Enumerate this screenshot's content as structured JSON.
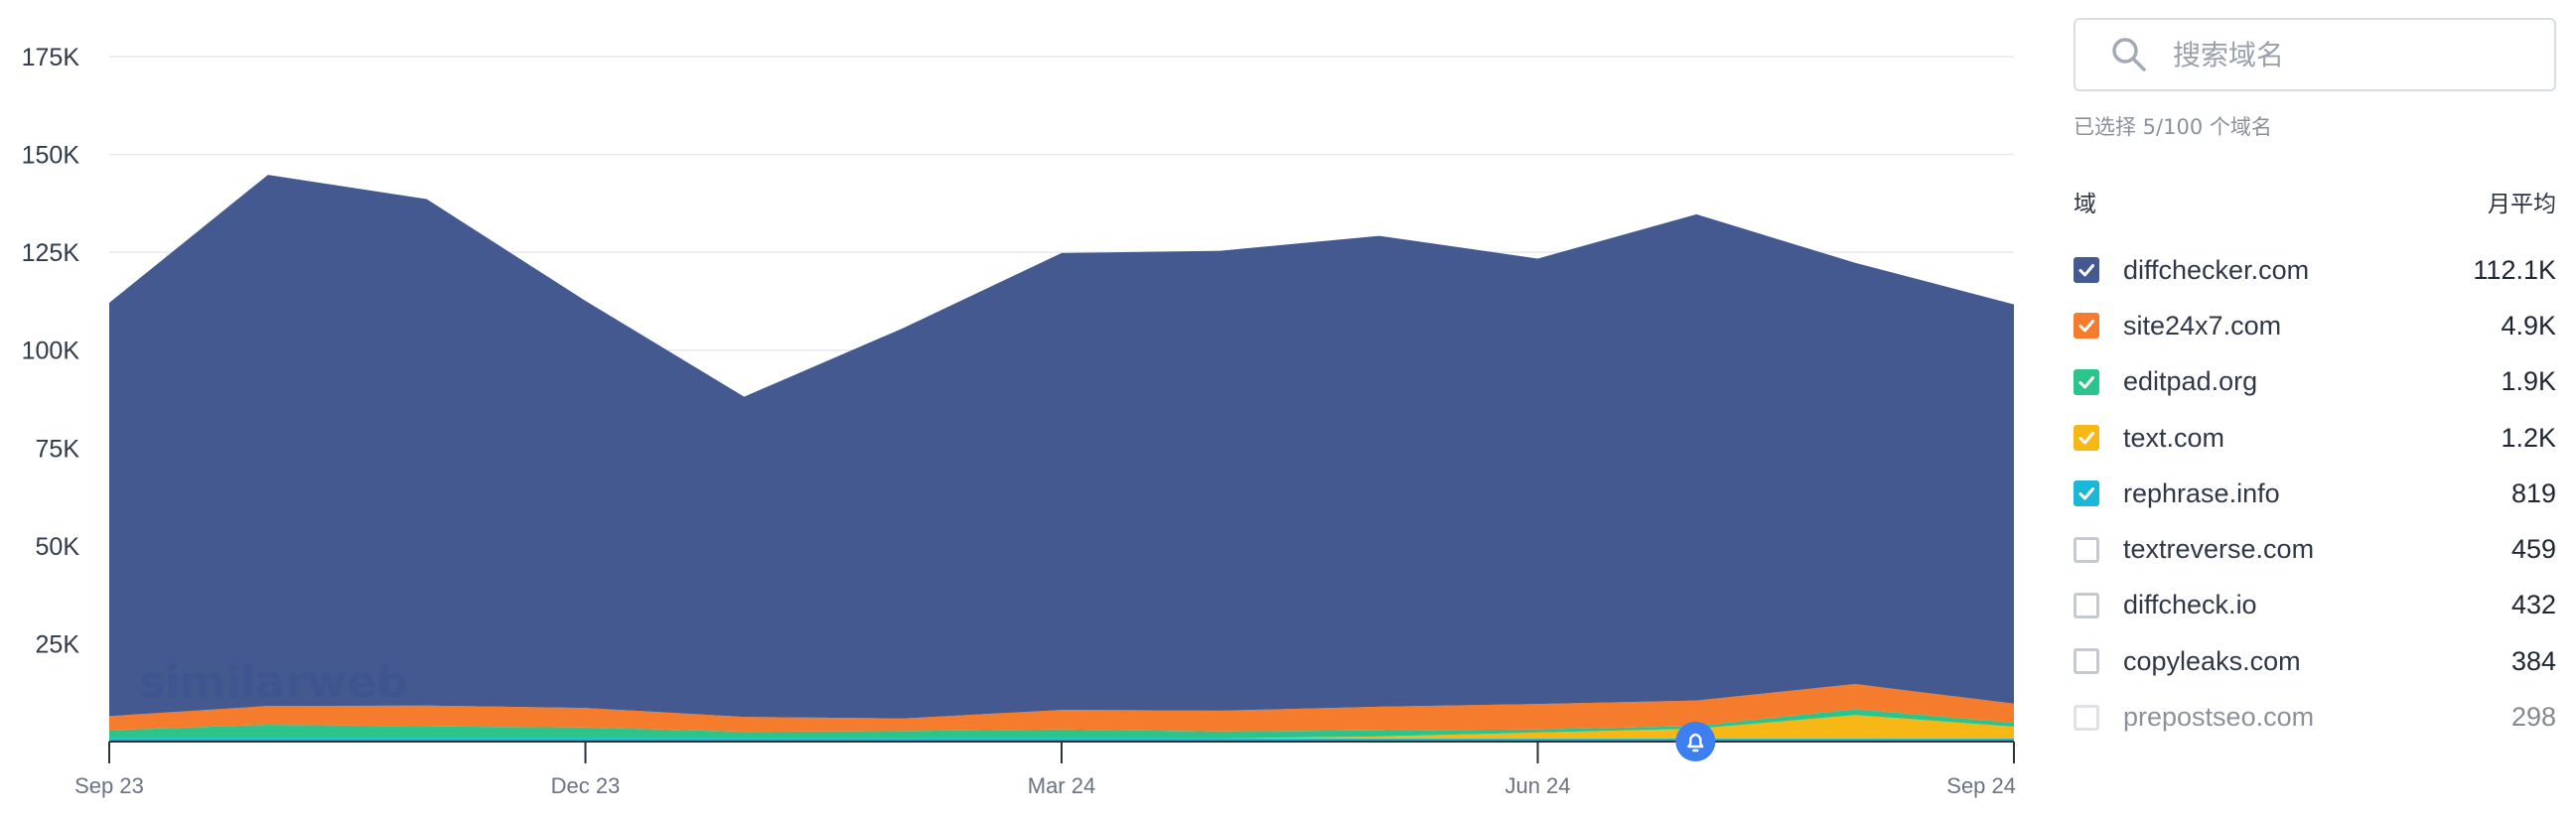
{
  "search": {
    "placeholder": "搜索域名"
  },
  "selection_note": "已选择 5/100 个域名",
  "list_header": {
    "domain": "域",
    "monthly_avg": "月平均"
  },
  "domains": [
    {
      "name": "diffchecker.com",
      "value": "112.1K",
      "checked": true,
      "color": "#43598f"
    },
    {
      "name": "site24x7.com",
      "value": "4.9K",
      "checked": true,
      "color": "#f47c2c"
    },
    {
      "name": "editpad.org",
      "value": "1.9K",
      "checked": true,
      "color": "#2bc48a"
    },
    {
      "name": "text.com",
      "value": "1.2K",
      "checked": true,
      "color": "#f7b714"
    },
    {
      "name": "rephrase.info",
      "value": "819",
      "checked": true,
      "color": "#19b8d8"
    },
    {
      "name": "textreverse.com",
      "value": "459",
      "checked": false
    },
    {
      "name": "diffcheck.io",
      "value": "432",
      "checked": false
    },
    {
      "name": "copyleaks.com",
      "value": "384",
      "checked": false
    },
    {
      "name": "prepostseo.com",
      "value": "298",
      "checked": false
    }
  ],
  "chart_data": {
    "type": "area",
    "stacked": true,
    "watermark": "similarweb",
    "x": [
      "Sep 23",
      "Oct 23",
      "Nov 23",
      "Dec 23",
      "Jan 24",
      "Feb 24",
      "Mar 24",
      "Apr 24",
      "May 24",
      "Jun 24",
      "Jul 24",
      "Aug 24",
      "Sep 24"
    ],
    "x_tick_labels": [
      "Sep 23",
      "Dec 23",
      "Mar 24",
      "Jun 24",
      "Sep 24"
    ],
    "ylim": [
      0,
      175000
    ],
    "y_ticks": [
      25000,
      50000,
      75000,
      100000,
      125000,
      150000,
      175000
    ],
    "y_tick_labels": [
      "25K",
      "50K",
      "75K",
      "100K",
      "125K",
      "150K",
      "175K"
    ],
    "grid": true,
    "series": [
      {
        "name": "rephrase.info",
        "color": "#19b8d8",
        "values": [
          800,
          800,
          800,
          800,
          800,
          800,
          800,
          800,
          800,
          800,
          800,
          800,
          800
        ]
      },
      {
        "name": "text.com",
        "color": "#f7b714",
        "values": [
          0,
          0,
          0,
          0,
          0,
          0,
          0,
          0,
          500,
          1500,
          2500,
          6000,
          3000
        ]
      },
      {
        "name": "editpad.org",
        "color": "#2bc48a",
        "values": [
          2100,
          3500,
          3100,
          2800,
          1700,
          1900,
          2300,
          1800,
          1600,
          800,
          700,
          1500,
          1000
        ]
      },
      {
        "name": "site24x7.com",
        "color": "#f47c2c",
        "values": [
          3600,
          4800,
          5300,
          5000,
          3800,
          3200,
          5000,
          5300,
          6000,
          6500,
          6500,
          6400,
          4900
        ]
      },
      {
        "name": "diffchecker.com",
        "color": "#43598f",
        "values": [
          105600,
          135700,
          129400,
          104000,
          81800,
          99700,
          116700,
          117500,
          120300,
          113800,
          124200,
          107600,
          102000
        ]
      }
    ]
  }
}
